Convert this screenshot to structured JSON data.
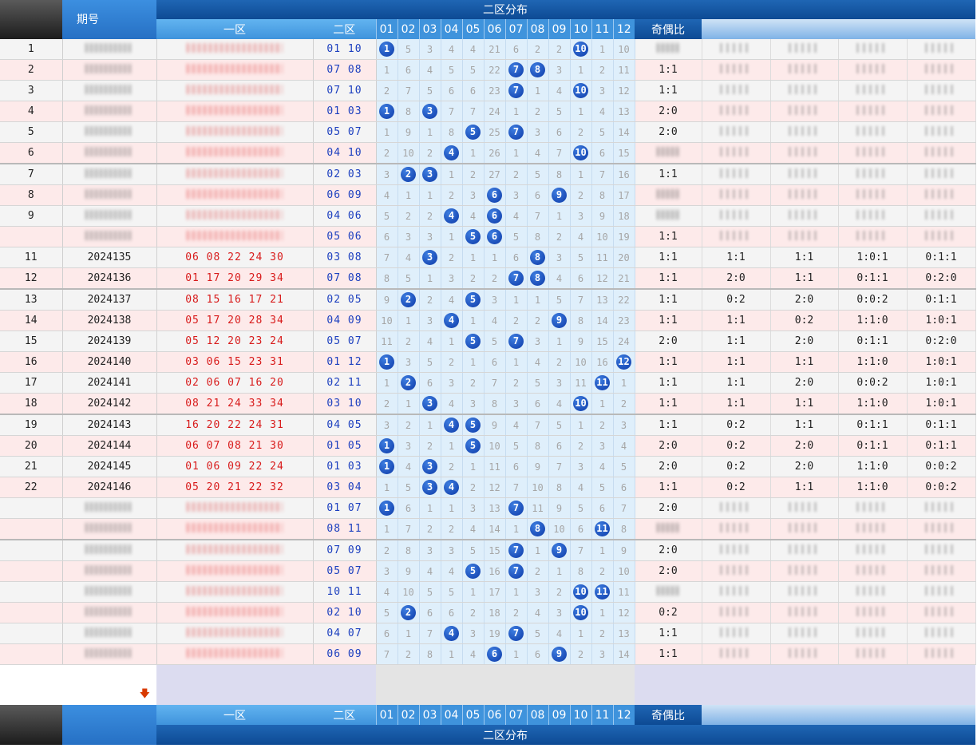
{
  "header": {
    "issue_label": "期号",
    "zone1": "一区",
    "zone2": "二区",
    "dist_title": "二区分布",
    "ratio": "奇偶比",
    "nums": [
      "01",
      "02",
      "03",
      "04",
      "05",
      "06",
      "07",
      "08",
      "09",
      "10",
      "11",
      "12"
    ]
  },
  "colors": {
    "ball": "#1a4fc4",
    "zone1_text": "#d81b1b",
    "zone2_text": "#1c3fbf",
    "header_blue": "#1558a8",
    "row_pink": "#fdeaea",
    "dist_bg": "#dfeffb"
  },
  "rows": [
    {
      "idx": "1",
      "issue": "",
      "zone1": "",
      "zone2": "01 10",
      "dist": [
        "1",
        "5",
        "3",
        "4",
        "4",
        "21",
        "6",
        "2",
        "2",
        "10",
        "1",
        "10"
      ],
      "hits": [
        1,
        10
      ],
      "ratio": "",
      "extra": [
        "",
        "",
        "",
        ""
      ],
      "blur": true
    },
    {
      "idx": "2",
      "issue": "",
      "zone1": "",
      "zone2": "07 08",
      "dist": [
        "1",
        "6",
        "4",
        "5",
        "5",
        "22",
        "7",
        "8",
        "3",
        "1",
        "2",
        "11"
      ],
      "hits": [
        7,
        8
      ],
      "ratio": "1:1",
      "extra": [
        "",
        "",
        "",
        ""
      ],
      "blur": true
    },
    {
      "idx": "3",
      "issue": "",
      "zone1": "",
      "zone2": "07 10",
      "dist": [
        "2",
        "7",
        "5",
        "6",
        "6",
        "23",
        "7",
        "1",
        "4",
        "10",
        "3",
        "12"
      ],
      "hits": [
        7,
        10
      ],
      "ratio": "1:1",
      "extra": [
        "",
        "",
        "",
        ""
      ],
      "blur": true
    },
    {
      "idx": "4",
      "issue": "",
      "zone1": "",
      "zone2": "01 03",
      "dist": [
        "1",
        "8",
        "3",
        "7",
        "7",
        "24",
        "1",
        "2",
        "5",
        "1",
        "4",
        "13"
      ],
      "hits": [
        1,
        3
      ],
      "ratio": "2:0",
      "extra": [
        "",
        "",
        "",
        ""
      ],
      "blur": true
    },
    {
      "idx": "5",
      "issue": "",
      "zone1": "",
      "zone2": "05 07",
      "dist": [
        "1",
        "9",
        "1",
        "8",
        "5",
        "25",
        "7",
        "3",
        "6",
        "2",
        "5",
        "14"
      ],
      "hits": [
        5,
        7
      ],
      "ratio": "2:0",
      "extra": [
        "",
        "",
        "",
        ""
      ],
      "blur": true
    },
    {
      "idx": "6",
      "issue": "",
      "zone1": "",
      "zone2": "04 10",
      "dist": [
        "2",
        "10",
        "2",
        "4",
        "1",
        "26",
        "1",
        "4",
        "7",
        "10",
        "6",
        "15"
      ],
      "hits": [
        4,
        10
      ],
      "ratio": "",
      "extra": [
        "",
        "",
        "",
        ""
      ],
      "blur": true,
      "sep": true
    },
    {
      "idx": "7",
      "issue": "",
      "zone1": "",
      "zone2": "02 03",
      "dist": [
        "3",
        "2",
        "3",
        "1",
        "2",
        "27",
        "2",
        "5",
        "8",
        "1",
        "7",
        "16"
      ],
      "hits": [
        2,
        3
      ],
      "ratio": "1:1",
      "extra": [
        "",
        "",
        "",
        ""
      ],
      "blur": true
    },
    {
      "idx": "8",
      "issue": "",
      "zone1": "",
      "zone2": "06 09",
      "dist": [
        "4",
        "1",
        "1",
        "2",
        "3",
        "6",
        "3",
        "6",
        "9",
        "2",
        "8",
        "17"
      ],
      "hits": [
        6,
        9
      ],
      "ratio": "",
      "extra": [
        "",
        "",
        "",
        ""
      ],
      "blur": true
    },
    {
      "idx": "9",
      "issue": "",
      "zone1": "",
      "zone2": "04 06",
      "dist": [
        "5",
        "2",
        "2",
        "4",
        "4",
        "6",
        "4",
        "7",
        "1",
        "3",
        "9",
        "18"
      ],
      "hits": [
        4,
        6
      ],
      "ratio": "",
      "extra": [
        "",
        "",
        "",
        ""
      ],
      "blur": true
    },
    {
      "idx": "",
      "issue": "",
      "zone1": "",
      "zone2": "05 06",
      "dist": [
        "6",
        "3",
        "3",
        "1",
        "5",
        "6",
        "5",
        "8",
        "2",
        "4",
        "10",
        "19"
      ],
      "hits": [
        5,
        6
      ],
      "ratio": "1:1",
      "extra": [
        "",
        "",
        "",
        ""
      ],
      "blur": true
    },
    {
      "idx": "11",
      "issue": "2024135",
      "zone1": "06 08 22 24 30",
      "zone2": "03 08",
      "dist": [
        "7",
        "4",
        "3",
        "2",
        "1",
        "1",
        "6",
        "8",
        "3",
        "5",
        "11",
        "20"
      ],
      "hits": [
        3,
        8
      ],
      "ratio": "1:1",
      "extra": [
        "1:1",
        "1:1",
        "1:0:1",
        "0:1:1"
      ]
    },
    {
      "idx": "12",
      "issue": "2024136",
      "zone1": "01 17 20 29 34",
      "zone2": "07 08",
      "dist": [
        "8",
        "5",
        "1",
        "3",
        "2",
        "2",
        "7",
        "8",
        "4",
        "6",
        "12",
        "21"
      ],
      "hits": [
        7,
        8
      ],
      "ratio": "1:1",
      "extra": [
        "2:0",
        "1:1",
        "0:1:1",
        "0:2:0"
      ],
      "sep": true
    },
    {
      "idx": "13",
      "issue": "2024137",
      "zone1": "08 15 16 17 21",
      "zone2": "02 05",
      "dist": [
        "9",
        "2",
        "2",
        "4",
        "5",
        "3",
        "1",
        "1",
        "5",
        "7",
        "13",
        "22"
      ],
      "hits": [
        2,
        5
      ],
      "ratio": "1:1",
      "extra": [
        "0:2",
        "2:0",
        "0:0:2",
        "0:1:1"
      ]
    },
    {
      "idx": "14",
      "issue": "2024138",
      "zone1": "05 17 20 28 34",
      "zone2": "04 09",
      "dist": [
        "10",
        "1",
        "3",
        "4",
        "1",
        "4",
        "2",
        "2",
        "9",
        "8",
        "14",
        "23"
      ],
      "hits": [
        4,
        9
      ],
      "ratio": "1:1",
      "extra": [
        "1:1",
        "0:2",
        "1:1:0",
        "1:0:1"
      ]
    },
    {
      "idx": "15",
      "issue": "2024139",
      "zone1": "05 12 20 23 24",
      "zone2": "05 07",
      "dist": [
        "11",
        "2",
        "4",
        "1",
        "5",
        "5",
        "7",
        "3",
        "1",
        "9",
        "15",
        "24"
      ],
      "hits": [
        5,
        7
      ],
      "ratio": "2:0",
      "extra": [
        "1:1",
        "2:0",
        "0:1:1",
        "0:2:0"
      ]
    },
    {
      "idx": "16",
      "issue": "2024140",
      "zone1": "03 06 15 23 31",
      "zone2": "01 12",
      "dist": [
        "1",
        "3",
        "5",
        "2",
        "1",
        "6",
        "1",
        "4",
        "2",
        "10",
        "16",
        "12"
      ],
      "hits": [
        1,
        12
      ],
      "ratio": "1:1",
      "extra": [
        "1:1",
        "1:1",
        "1:1:0",
        "1:0:1"
      ]
    },
    {
      "idx": "17",
      "issue": "2024141",
      "zone1": "02 06 07 16 20",
      "zone2": "02 11",
      "dist": [
        "1",
        "2",
        "6",
        "3",
        "2",
        "7",
        "2",
        "5",
        "3",
        "11",
        "11",
        "1"
      ],
      "hits": [
        2,
        11
      ],
      "ratio": "1:1",
      "extra": [
        "1:1",
        "2:0",
        "0:0:2",
        "1:0:1"
      ]
    },
    {
      "idx": "18",
      "issue": "2024142",
      "zone1": "08 21 24 33 34",
      "zone2": "03 10",
      "dist": [
        "2",
        "1",
        "3",
        "4",
        "3",
        "8",
        "3",
        "6",
        "4",
        "10",
        "1",
        "2"
      ],
      "hits": [
        3,
        10
      ],
      "ratio": "1:1",
      "extra": [
        "1:1",
        "1:1",
        "1:1:0",
        "1:0:1"
      ],
      "sep": true
    },
    {
      "idx": "19",
      "issue": "2024143",
      "zone1": "16 20 22 24 31",
      "zone2": "04 05",
      "dist": [
        "3",
        "2",
        "1",
        "4",
        "5",
        "9",
        "4",
        "7",
        "5",
        "1",
        "2",
        "3"
      ],
      "hits": [
        4,
        5
      ],
      "ratio": "1:1",
      "extra": [
        "0:2",
        "1:1",
        "0:1:1",
        "0:1:1"
      ]
    },
    {
      "idx": "20",
      "issue": "2024144",
      "zone1": "06 07 08 21 30",
      "zone2": "01 05",
      "dist": [
        "1",
        "3",
        "2",
        "1",
        "5",
        "10",
        "5",
        "8",
        "6",
        "2",
        "3",
        "4"
      ],
      "hits": [
        1,
        5
      ],
      "ratio": "2:0",
      "extra": [
        "0:2",
        "2:0",
        "0:1:1",
        "0:1:1"
      ]
    },
    {
      "idx": "21",
      "issue": "2024145",
      "zone1": "01 06 09 22 24",
      "zone2": "01 03",
      "dist": [
        "1",
        "4",
        "3",
        "2",
        "1",
        "11",
        "6",
        "9",
        "7",
        "3",
        "4",
        "5"
      ],
      "hits": [
        1,
        3
      ],
      "ratio": "2:0",
      "extra": [
        "0:2",
        "2:0",
        "1:1:0",
        "0:0:2"
      ]
    },
    {
      "idx": "22",
      "issue": "2024146",
      "zone1": "05 20 21 22 32",
      "zone2": "03 04",
      "dist": [
        "1",
        "5",
        "3",
        "4",
        "2",
        "12",
        "7",
        "10",
        "8",
        "4",
        "5",
        "6"
      ],
      "hits": [
        3,
        4
      ],
      "ratio": "1:1",
      "extra": [
        "0:2",
        "1:1",
        "1:1:0",
        "0:0:2"
      ]
    },
    {
      "idx": "",
      "issue": "",
      "zone1": "",
      "zone2": "01 07",
      "dist": [
        "1",
        "6",
        "1",
        "1",
        "3",
        "13",
        "7",
        "11",
        "9",
        "5",
        "6",
        "7"
      ],
      "hits": [
        1,
        7
      ],
      "ratio": "2:0",
      "extra": [
        "",
        "",
        "",
        ""
      ],
      "blur": true
    },
    {
      "idx": "",
      "issue": "",
      "zone1": "",
      "zone2": "08 11",
      "dist": [
        "1",
        "7",
        "2",
        "2",
        "4",
        "14",
        "1",
        "8",
        "10",
        "6",
        "11",
        "8"
      ],
      "hits": [
        8,
        11
      ],
      "ratio": "",
      "extra": [
        "",
        "",
        "",
        ""
      ],
      "blur": true,
      "sep": true
    },
    {
      "idx": "",
      "issue": "",
      "zone1": "",
      "zone2": "07 09",
      "dist": [
        "2",
        "8",
        "3",
        "3",
        "5",
        "15",
        "7",
        "1",
        "9",
        "7",
        "1",
        "9"
      ],
      "hits": [
        7,
        9
      ],
      "ratio": "2:0",
      "extra": [
        "",
        "",
        "",
        ""
      ],
      "blur": true
    },
    {
      "idx": "",
      "issue": "",
      "zone1": "",
      "zone2": "05 07",
      "dist": [
        "3",
        "9",
        "4",
        "4",
        "5",
        "16",
        "7",
        "2",
        "1",
        "8",
        "2",
        "10"
      ],
      "hits": [
        5,
        7
      ],
      "ratio": "2:0",
      "extra": [
        "",
        "",
        "",
        ""
      ],
      "blur": true
    },
    {
      "idx": "",
      "issue": "",
      "zone1": "",
      "zone2": "10 11",
      "dist": [
        "4",
        "10",
        "5",
        "5",
        "1",
        "17",
        "1",
        "3",
        "2",
        "10",
        "11",
        "11"
      ],
      "hits": [
        10,
        11
      ],
      "ratio": "",
      "extra": [
        "",
        "",
        "",
        ""
      ],
      "blur": true
    },
    {
      "idx": "",
      "issue": "",
      "zone1": "",
      "zone2": "02 10",
      "dist": [
        "5",
        "2",
        "6",
        "6",
        "2",
        "18",
        "2",
        "4",
        "3",
        "10",
        "1",
        "12"
      ],
      "hits": [
        2,
        10
      ],
      "ratio": "0:2",
      "extra": [
        "",
        "",
        "",
        ""
      ],
      "blur": true
    },
    {
      "idx": "",
      "issue": "",
      "zone1": "",
      "zone2": "04 07",
      "dist": [
        "6",
        "1",
        "7",
        "4",
        "3",
        "19",
        "7",
        "5",
        "4",
        "1",
        "2",
        "13"
      ],
      "hits": [
        4,
        7
      ],
      "ratio": "1:1",
      "extra": [
        "",
        "",
        "",
        ""
      ],
      "blur": true
    },
    {
      "idx": "",
      "issue": "",
      "zone1": "",
      "zone2": "06 09",
      "dist": [
        "7",
        "2",
        "8",
        "1",
        "4",
        "6",
        "1",
        "6",
        "9",
        "2",
        "3",
        "14"
      ],
      "hits": [
        6,
        9
      ],
      "ratio": "1:1",
      "extra": [
        "",
        "",
        "",
        ""
      ],
      "blur": true
    }
  ]
}
